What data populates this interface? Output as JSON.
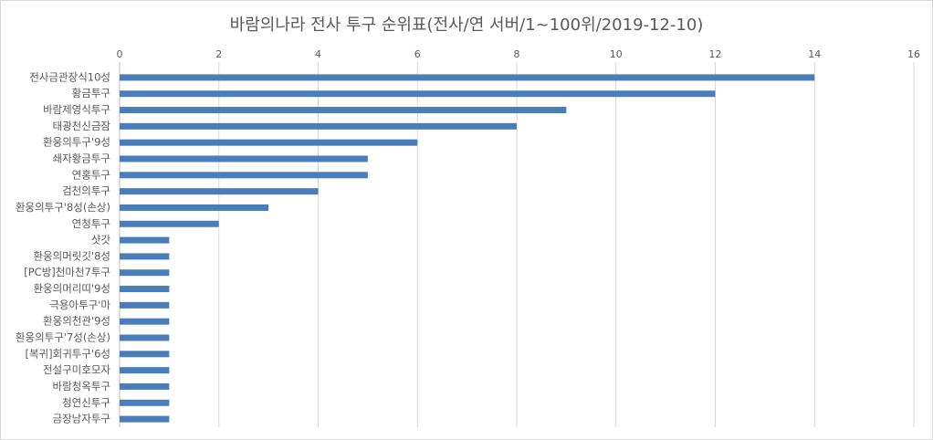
{
  "chart_data": {
    "type": "bar",
    "orientation": "horizontal",
    "title": "바람의나라 전사 투구 순위표(전사/연 서버/1~100위/2019-12-10)",
    "categories": [
      "전사금관장식10성",
      "황금투구",
      "바람제영식투구",
      "태광천신금잠",
      "환웅의투구'9성",
      "쇄자황금투구",
      "연홍투구",
      "검천의투구",
      "환웅의투구'8성(손상)",
      "연청투구",
      "샷갓",
      "환웅의머릿깃'8성",
      "[PC방]천마천7투구",
      "환웅의머리띠'9성",
      "극용아투구'마",
      "환웅의천관'9성",
      "환웅의투구'7성(손상)",
      "[복귀]회귀투구'6성",
      "전설구미호모자",
      "바람청옥투구",
      "청연신투구",
      "금장남자투구"
    ],
    "values": [
      14,
      12,
      9,
      8,
      6,
      5,
      5,
      4,
      3,
      2,
      1,
      1,
      1,
      1,
      1,
      1,
      1,
      1,
      1,
      1,
      1,
      1
    ],
    "color": "#4a7ebb",
    "xlim": [
      0,
      16
    ],
    "xticks": [
      0,
      2,
      4,
      6,
      8,
      10,
      12,
      14,
      16
    ],
    "grid": true
  }
}
